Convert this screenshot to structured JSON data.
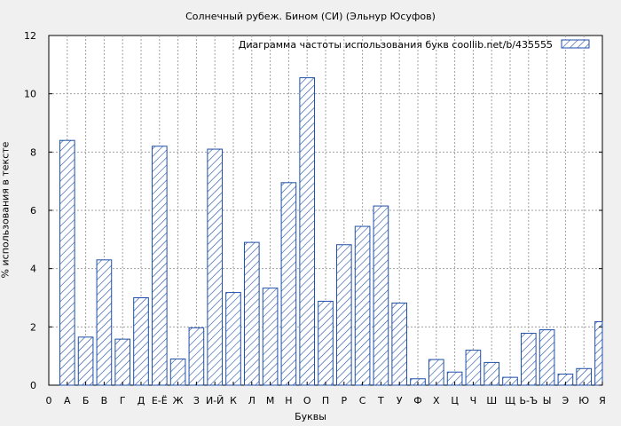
{
  "chart_data": {
    "type": "bar",
    "title": "Солнечный рубеж. Бином (СИ) (Эльнур Юсуфов)",
    "xlabel": "Буквы",
    "ylabel": "% использования в тексте",
    "legend": "Диаграмма частоты использования букв  coollib.net/b/435555",
    "legend_position": "top-right",
    "grid": true,
    "ylim": [
      0,
      12
    ],
    "yticks": [
      "0",
      "2",
      "4",
      "6",
      "8",
      "10",
      "12"
    ],
    "x_axis_labels": [
      "0",
      "А",
      "Б",
      "В",
      "Г",
      "Д",
      "Е-Ё",
      "Ж",
      "З",
      "И-Й",
      "К",
      "Л",
      "М",
      "Н",
      "О",
      "П",
      "Р",
      "С",
      "Т",
      "У",
      "Ф",
      "Х",
      "Ц",
      "Ч",
      "Ш",
      "Щ",
      "Ь-Ъ",
      "Ы",
      "Э",
      "Ю",
      "Я"
    ],
    "categories": [
      "А",
      "Б",
      "В",
      "Г",
      "Д",
      "Е-Ё",
      "Ж",
      "З",
      "И-Й",
      "К",
      "Л",
      "М",
      "Н",
      "О",
      "П",
      "Р",
      "С",
      "Т",
      "У",
      "Ф",
      "Х",
      "Ц",
      "Ч",
      "Ш",
      "Щ",
      "Ь-Ъ",
      "Ы",
      "Э",
      "Ю",
      "Я"
    ],
    "values": [
      8.4,
      1.65,
      4.3,
      1.58,
      3.0,
      8.2,
      0.9,
      1.97,
      8.1,
      3.18,
      4.9,
      3.33,
      6.95,
      10.55,
      2.88,
      4.82,
      5.45,
      6.15,
      2.82,
      0.22,
      0.88,
      0.45,
      1.2,
      0.78,
      0.27,
      1.78,
      1.9,
      0.38,
      0.57,
      2.18
    ],
    "bar_color": "#1f4fa8"
  }
}
